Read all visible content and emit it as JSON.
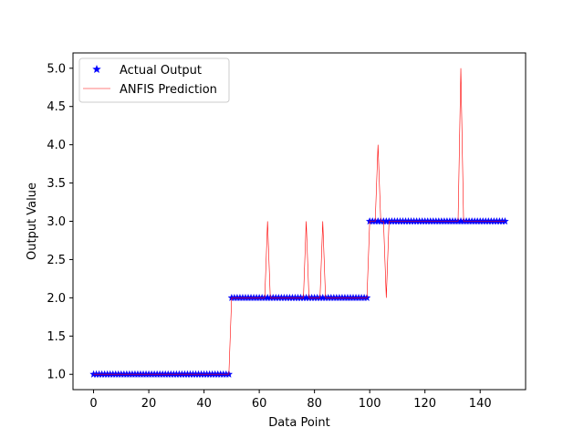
{
  "chart_data": {
    "type": "line",
    "xlabel": "Data Point",
    "ylabel": "Output Value",
    "xlim": [
      -7.45,
      156.45
    ],
    "ylim": [
      0.8,
      5.2
    ],
    "xticks": [
      0,
      20,
      40,
      60,
      80,
      100,
      120,
      140
    ],
    "yticks": [
      1.0,
      1.5,
      2.0,
      2.5,
      3.0,
      3.5,
      4.0,
      4.5,
      5.0
    ],
    "xtick_labels": [
      "0",
      "20",
      "40",
      "60",
      "80",
      "100",
      "120",
      "140"
    ],
    "ytick_labels": [
      "1.0",
      "1.5",
      "2.0",
      "2.5",
      "3.0",
      "3.5",
      "4.0",
      "4.5",
      "5.0"
    ],
    "grid": false,
    "legend_position": "top-left",
    "series": [
      {
        "name": "Actual Output",
        "style": "marker",
        "marker": "star",
        "color": "#0000ff",
        "x": [
          0,
          1,
          2,
          3,
          4,
          5,
          6,
          7,
          8,
          9,
          10,
          11,
          12,
          13,
          14,
          15,
          16,
          17,
          18,
          19,
          20,
          21,
          22,
          23,
          24,
          25,
          26,
          27,
          28,
          29,
          30,
          31,
          32,
          33,
          34,
          35,
          36,
          37,
          38,
          39,
          40,
          41,
          42,
          43,
          44,
          45,
          46,
          47,
          48,
          49,
          50,
          51,
          52,
          53,
          54,
          55,
          56,
          57,
          58,
          59,
          60,
          61,
          62,
          63,
          64,
          65,
          66,
          67,
          68,
          69,
          70,
          71,
          72,
          73,
          74,
          75,
          76,
          77,
          78,
          79,
          80,
          81,
          82,
          83,
          84,
          85,
          86,
          87,
          88,
          89,
          90,
          91,
          92,
          93,
          94,
          95,
          96,
          97,
          98,
          99,
          100,
          101,
          102,
          103,
          104,
          105,
          106,
          107,
          108,
          109,
          110,
          111,
          112,
          113,
          114,
          115,
          116,
          117,
          118,
          119,
          120,
          121,
          122,
          123,
          124,
          125,
          126,
          127,
          128,
          129,
          130,
          131,
          132,
          133,
          134,
          135,
          136,
          137,
          138,
          139,
          140,
          141,
          142,
          143,
          144,
          145,
          146,
          147,
          148,
          149
        ],
        "y": [
          1,
          1,
          1,
          1,
          1,
          1,
          1,
          1,
          1,
          1,
          1,
          1,
          1,
          1,
          1,
          1,
          1,
          1,
          1,
          1,
          1,
          1,
          1,
          1,
          1,
          1,
          1,
          1,
          1,
          1,
          1,
          1,
          1,
          1,
          1,
          1,
          1,
          1,
          1,
          1,
          1,
          1,
          1,
          1,
          1,
          1,
          1,
          1,
          1,
          1,
          2,
          2,
          2,
          2,
          2,
          2,
          2,
          2,
          2,
          2,
          2,
          2,
          2,
          2,
          2,
          2,
          2,
          2,
          2,
          2,
          2,
          2,
          2,
          2,
          2,
          2,
          2,
          2,
          2,
          2,
          2,
          2,
          2,
          2,
          2,
          2,
          2,
          2,
          2,
          2,
          2,
          2,
          2,
          2,
          2,
          2,
          2,
          2,
          2,
          2,
          3,
          3,
          3,
          3,
          3,
          3,
          3,
          3,
          3,
          3,
          3,
          3,
          3,
          3,
          3,
          3,
          3,
          3,
          3,
          3,
          3,
          3,
          3,
          3,
          3,
          3,
          3,
          3,
          3,
          3,
          3,
          3,
          3,
          3,
          3,
          3,
          3,
          3,
          3,
          3,
          3,
          3,
          3,
          3,
          3,
          3,
          3,
          3,
          3,
          3
        ]
      },
      {
        "name": "ANFIS Prediction",
        "style": "line",
        "color": "#ff0000",
        "x": [
          0,
          1,
          2,
          3,
          4,
          5,
          6,
          7,
          8,
          9,
          10,
          11,
          12,
          13,
          14,
          15,
          16,
          17,
          18,
          19,
          20,
          21,
          22,
          23,
          24,
          25,
          26,
          27,
          28,
          29,
          30,
          31,
          32,
          33,
          34,
          35,
          36,
          37,
          38,
          39,
          40,
          41,
          42,
          43,
          44,
          45,
          46,
          47,
          48,
          49,
          50,
          51,
          52,
          53,
          54,
          55,
          56,
          57,
          58,
          59,
          60,
          61,
          62,
          63,
          64,
          65,
          66,
          67,
          68,
          69,
          70,
          71,
          72,
          73,
          74,
          75,
          76,
          77,
          78,
          79,
          80,
          81,
          82,
          83,
          84,
          85,
          86,
          87,
          88,
          89,
          90,
          91,
          92,
          93,
          94,
          95,
          96,
          97,
          98,
          99,
          100,
          101,
          102,
          103,
          104,
          105,
          106,
          107,
          108,
          109,
          110,
          111,
          112,
          113,
          114,
          115,
          116,
          117,
          118,
          119,
          120,
          121,
          122,
          123,
          124,
          125,
          126,
          127,
          128,
          129,
          130,
          131,
          132,
          133,
          134,
          135,
          136,
          137,
          138,
          139,
          140,
          141,
          142,
          143,
          144,
          145,
          146,
          147,
          148,
          149
        ],
        "y": [
          1,
          1,
          1,
          1,
          1,
          1,
          1,
          1,
          1,
          1,
          1,
          1,
          1,
          1,
          1,
          1,
          1,
          1,
          1,
          1,
          1,
          1,
          1,
          1,
          1,
          1,
          1,
          1,
          1,
          1,
          1,
          1,
          1,
          1,
          1,
          1,
          1,
          1,
          1,
          1,
          1,
          1,
          1,
          1,
          1,
          1,
          1,
          1,
          1,
          1,
          2,
          2,
          2,
          2,
          2,
          2,
          2,
          2,
          2,
          2,
          2,
          2,
          2,
          3,
          2,
          2,
          2,
          2,
          2,
          2,
          2,
          2,
          2,
          2,
          2,
          2,
          2,
          3,
          2,
          2,
          2,
          2,
          2,
          3,
          2,
          2,
          2,
          2,
          2,
          2,
          2,
          2,
          2,
          2,
          2,
          2,
          2,
          2,
          2,
          2,
          3,
          3,
          3,
          4,
          3,
          3,
          2,
          3,
          3,
          3,
          3,
          3,
          3,
          3,
          3,
          3,
          3,
          3,
          3,
          3,
          3,
          3,
          3,
          3,
          3,
          3,
          3,
          3,
          3,
          3,
          3,
          3,
          3,
          5,
          3,
          3,
          3,
          3,
          3,
          3,
          3,
          3,
          3,
          3,
          3,
          3,
          3,
          3,
          3,
          3
        ]
      }
    ]
  }
}
